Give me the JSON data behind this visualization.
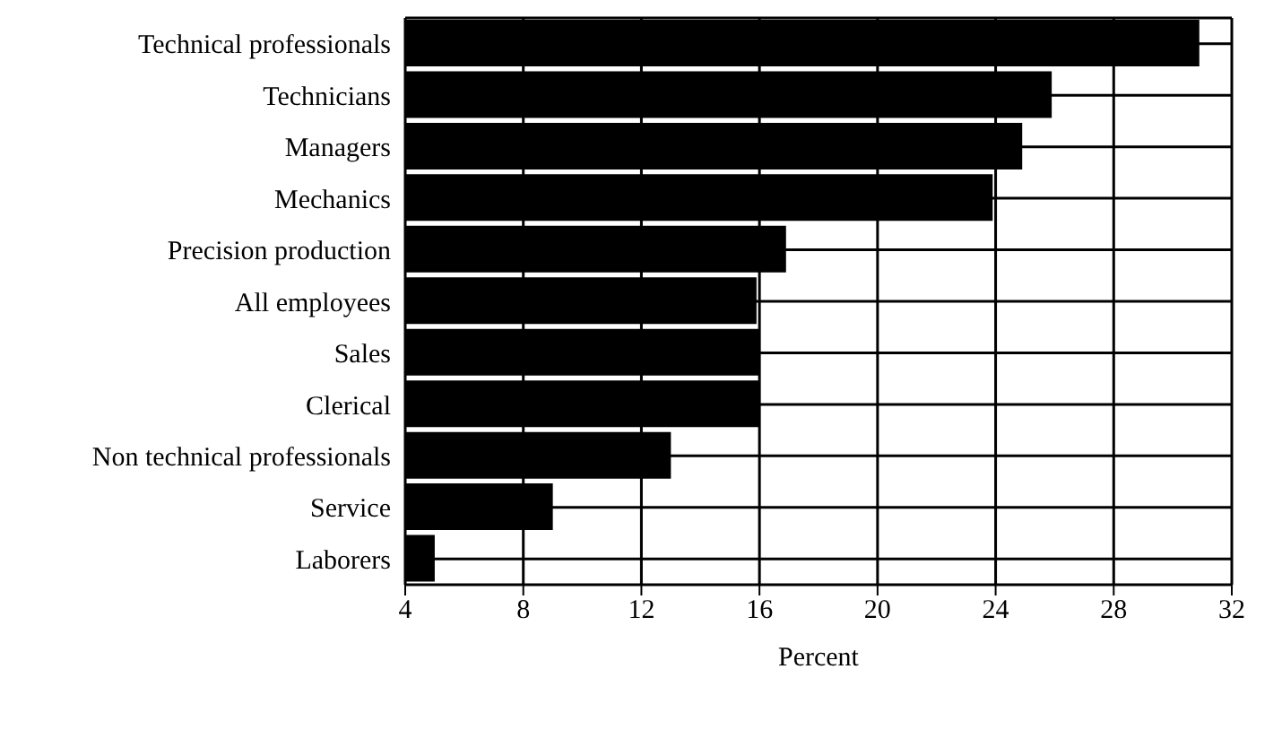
{
  "chart_data": {
    "type": "bar",
    "orientation": "horizontal",
    "xlabel": "Percent",
    "categories": [
      "Technical professionals",
      "Technicians",
      "Managers",
      "Mechanics",
      "Precision production",
      "All employees",
      "Sales",
      "Clerical",
      "Non technical professionals",
      "Service",
      "Laborers"
    ],
    "values": [
      30.9,
      25.9,
      24.9,
      23.9,
      16.9,
      15.9,
      16,
      16,
      13,
      9,
      5
    ],
    "color": "#000000",
    "xlim": [
      4,
      32
    ],
    "xticks": [
      4,
      8,
      12,
      16,
      20,
      24,
      28,
      32
    ],
    "grid": true
  }
}
